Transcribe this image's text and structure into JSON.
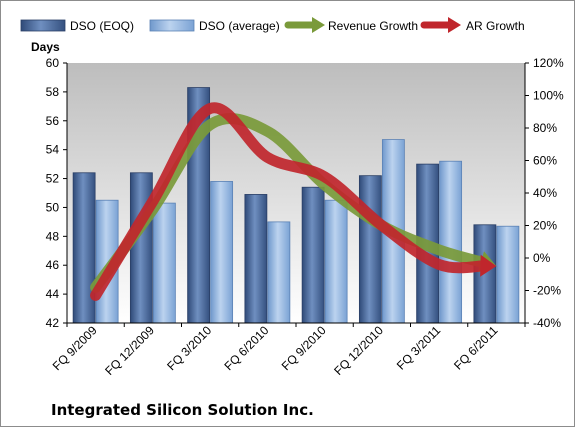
{
  "company_name": "Integrated Silicon Solution Inc.",
  "chart_data": {
    "type": "bar",
    "categories": [
      "FQ 9/2009",
      "FQ 12/2009",
      "FQ 3/2010",
      "FQ 6/2010",
      "FQ 9/2010",
      "FQ 12/2010",
      "FQ 3/2011",
      "FQ 6/2011"
    ],
    "y_left": {
      "label": "Days",
      "lim": [
        42,
        60
      ],
      "ticks": [
        42,
        44,
        46,
        48,
        50,
        52,
        54,
        56,
        58,
        60
      ]
    },
    "y_right": {
      "lim": [
        -40,
        120
      ],
      "ticks": [
        "-40%",
        "-20%",
        "0%",
        "20%",
        "40%",
        "60%",
        "80%",
        "100%",
        "120%"
      ]
    },
    "grid": false,
    "legend_position": "top",
    "series": [
      {
        "name": "DSO (EOQ)",
        "type": "bar",
        "axis": "left",
        "color": "#4a6a9c",
        "values": [
          52.4,
          52.4,
          58.3,
          50.9,
          51.4,
          52.2,
          53.0,
          48.8
        ]
      },
      {
        "name": "DSO (average)",
        "type": "bar",
        "axis": "left",
        "color": "#8eb4e3",
        "values": [
          50.5,
          50.3,
          51.8,
          49.0,
          50.5,
          54.7,
          53.2,
          48.7
        ]
      },
      {
        "name": "Revenue Growth",
        "type": "line",
        "axis": "right",
        "color": "#7a9a3a",
        "values": [
          -18,
          30,
          82,
          78,
          45,
          20,
          5,
          -5
        ]
      },
      {
        "name": "AR Growth",
        "type": "line",
        "axis": "right",
        "color": "#c0262c",
        "values": [
          -23,
          35,
          92,
          62,
          50,
          20,
          -4,
          -5
        ]
      }
    ]
  }
}
